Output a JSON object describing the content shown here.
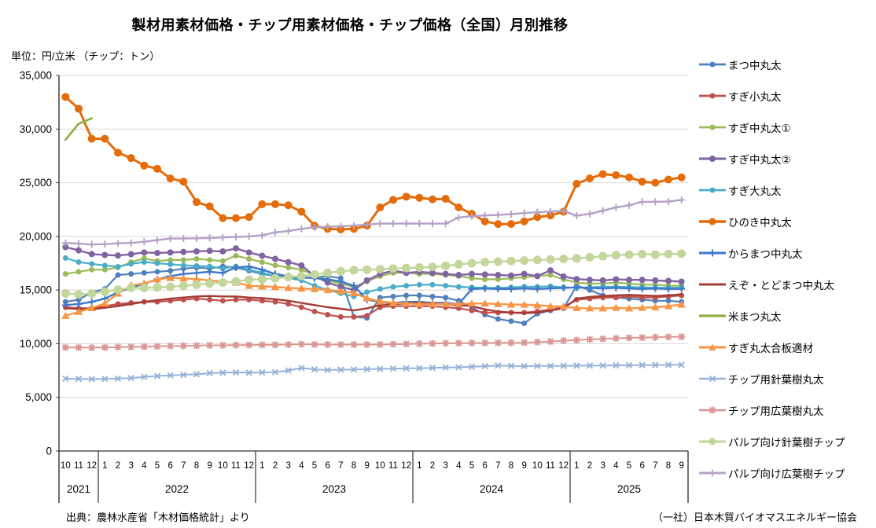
{
  "title": "製材用素材価格・チップ用素材価格・チップ価格（全国）月別推移",
  "unit_label": "単位：円/立米 （チップ：トン）",
  "source_left": "出典：農林水産省「木材価格統計」より",
  "source_right": "（一社）日本木質バイオマスエネルギー協会",
  "chart_data": {
    "type": "line",
    "ylabel": "円/立米（チップ：トン）",
    "ylim": [
      0,
      35000
    ],
    "ytick_step": 5000,
    "grid": true,
    "legend_position": "right",
    "x_years": [
      {
        "year": "2021",
        "months": [
          "10",
          "11",
          "12"
        ]
      },
      {
        "year": "2022",
        "months": [
          "1",
          "2",
          "3",
          "4",
          "5",
          "6",
          "7",
          "8",
          "9",
          "10",
          "11",
          "12"
        ]
      },
      {
        "year": "2023",
        "months": [
          "1",
          "2",
          "3",
          "4",
          "5",
          "6",
          "7",
          "8",
          "9",
          "10",
          "11",
          "12"
        ]
      },
      {
        "year": "2024",
        "months": [
          "1",
          "2",
          "3",
          "4",
          "5",
          "6",
          "7",
          "8",
          "9",
          "10",
          "11",
          "12"
        ]
      },
      {
        "year": "2025",
        "months": [
          "1",
          "2",
          "3",
          "4",
          "5",
          "6",
          "7",
          "8",
          "9"
        ]
      }
    ],
    "series": [
      {
        "name": "まつ中丸太",
        "color": "#4F81BD",
        "marker": "circle",
        "marker_size": 3.5,
        "line_width": 2.2,
        "values": [
          13900,
          14100,
          14800,
          15100,
          16400,
          16500,
          16600,
          16700,
          16800,
          17000,
          17100,
          17000,
          17200,
          17100,
          16800,
          16500,
          16300,
          16200,
          16100,
          16200,
          16300,
          16100,
          12500,
          12400,
          14300,
          14400,
          14500,
          14500,
          14400,
          14300,
          14000,
          13400,
          12700,
          12300,
          12100,
          11900,
          12800,
          13100,
          13300,
          15400,
          15000,
          14500,
          14300,
          14200,
          14100,
          14000,
          14000,
          13900
        ]
      },
      {
        "name": "すぎ小丸太",
        "color": "#C0504D",
        "marker": "circle",
        "marker_size": 3.5,
        "line_width": 2.2,
        "values": [
          13400,
          13300,
          13300,
          13500,
          13700,
          13800,
          13900,
          13900,
          14000,
          14100,
          14200,
          14100,
          14000,
          14100,
          14100,
          14000,
          13900,
          13700,
          13400,
          13000,
          12700,
          12500,
          12500,
          12600,
          13400,
          13500,
          13500,
          13500,
          13500,
          13400,
          13300,
          13100,
          12900,
          12900,
          12900,
          12900,
          13000,
          13200,
          13400,
          14100,
          14200,
          14300,
          14300,
          14400,
          14300,
          14300,
          14400,
          14500
        ]
      },
      {
        "name": "すぎ中丸太①",
        "color": "#9BBB59",
        "marker": "circle",
        "marker_size": 3.5,
        "line_width": 2.2,
        "values": [
          16500,
          16700,
          16900,
          16900,
          17100,
          17600,
          17950,
          17700,
          17800,
          17800,
          17900,
          17800,
          17700,
          18200,
          17900,
          17600,
          17300,
          17100,
          16900,
          16400,
          15900,
          15600,
          15300,
          15800,
          16300,
          16600,
          16600,
          16500,
          16500,
          16400,
          16300,
          16100,
          16000,
          16000,
          16100,
          16200,
          16300,
          16400,
          16000,
          15700,
          15600,
          15600,
          15700,
          15600,
          15500,
          15500,
          15400,
          15400
        ]
      },
      {
        "name": "すぎ中丸太②",
        "color": "#8064A2",
        "marker": "circle",
        "marker_size": 4,
        "line_width": 2.4,
        "values": [
          19000,
          18700,
          18350,
          18270,
          18220,
          18340,
          18500,
          18450,
          18500,
          18550,
          18600,
          18650,
          18600,
          18880,
          18500,
          18200,
          17900,
          17600,
          17300,
          16300,
          15700,
          15300,
          15000,
          15900,
          16500,
          16800,
          16600,
          16700,
          16600,
          16500,
          16400,
          16500,
          16450,
          16400,
          16350,
          16500,
          16300,
          16830,
          16260,
          16020,
          15950,
          15900,
          16000,
          15950,
          15950,
          15900,
          15850,
          15780
        ]
      },
      {
        "name": "すぎ大丸太",
        "color": "#4BACC6",
        "marker": "circle",
        "marker_size": 3.5,
        "line_width": 2.2,
        "values": [
          17980,
          17610,
          17440,
          17290,
          17170,
          17440,
          17610,
          17500,
          17400,
          17300,
          17250,
          17200,
          17000,
          17200,
          16900,
          16600,
          16300,
          16100,
          15900,
          15400,
          15000,
          14700,
          14400,
          14800,
          15100,
          15300,
          15400,
          15500,
          15500,
          15400,
          15300,
          15250,
          15200,
          15200,
          15250,
          15300,
          15300,
          15350,
          15250,
          15200,
          15250,
          15300,
          15300,
          15280,
          15250,
          15220,
          15200,
          15220
        ]
      },
      {
        "name": "ひのき中丸太",
        "color": "#E46C0A",
        "marker": "circle",
        "marker_size": 5,
        "line_width": 3,
        "values": [
          33000,
          31900,
          29100,
          29100,
          27800,
          27300,
          26600,
          26300,
          25400,
          25100,
          23200,
          22800,
          21700,
          21700,
          21800,
          23000,
          23000,
          22900,
          22300,
          21000,
          20700,
          20650,
          20700,
          21000,
          22700,
          23400,
          23700,
          23600,
          23450,
          23500,
          22700,
          22100,
          21400,
          21150,
          21150,
          21400,
          21800,
          21950,
          22300,
          24900,
          25400,
          25800,
          25700,
          25500,
          25100,
          25000,
          25300,
          25500
        ]
      },
      {
        "name": "からまつ中丸太",
        "color": "#3E78C8",
        "marker": "plus",
        "marker_size": 4.5,
        "line_width": 2.4,
        "values": [
          13600,
          13700,
          13900,
          14200,
          14800,
          15200,
          15600,
          16000,
          16300,
          16500,
          16600,
          16700,
          16600,
          17100,
          17200,
          16900,
          16500,
          16300,
          16200,
          16100,
          16000,
          15800,
          15400,
          14100,
          13900,
          13800,
          13900,
          13900,
          13800,
          13800,
          13700,
          15100,
          15150,
          15100,
          15100,
          15150,
          15100,
          15150,
          15200,
          15250,
          15200,
          15150,
          15200,
          15150,
          15100,
          15150,
          15100,
          15120
        ]
      },
      {
        "name": "えぞ・とどまつ中丸太",
        "color": "#A33C35",
        "marker": "none",
        "marker_size": 0,
        "line_width": 2.4,
        "values": [
          13300,
          13250,
          13200,
          13350,
          13500,
          13700,
          13900,
          14050,
          14200,
          14300,
          14400,
          14450,
          14400,
          14400,
          14300,
          14250,
          14150,
          14000,
          13800,
          13600,
          13400,
          13250,
          13100,
          13300,
          13600,
          13700,
          13750,
          13800,
          13750,
          13700,
          13600,
          13500,
          13200,
          13000,
          12900,
          12850,
          12900,
          13100,
          13300,
          14200,
          14350,
          14450,
          14500,
          14550,
          14500,
          14450,
          14500,
          14600
        ]
      },
      {
        "name": "米まつ丸太",
        "color": "#8FAF3E",
        "marker": "none",
        "marker_size": 0,
        "line_width": 2.6,
        "values": [
          29000,
          30500,
          31000,
          null,
          null,
          null,
          null,
          null,
          null,
          null,
          null,
          null,
          null,
          null,
          null,
          null,
          null,
          null,
          null,
          null,
          null,
          null,
          null,
          null,
          null,
          null,
          null,
          null,
          null,
          null,
          null,
          null,
          null,
          null,
          null,
          null,
          null,
          null,
          null,
          null,
          null,
          null,
          null,
          null,
          null,
          null,
          null,
          null
        ]
      },
      {
        "name": "すぎ丸太合板適材",
        "color": "#F79646",
        "marker": "triangle",
        "marker_size": 5,
        "line_width": 2.4,
        "values": [
          12600,
          12970,
          13330,
          13750,
          14680,
          15460,
          15600,
          16000,
          16140,
          16090,
          16020,
          15900,
          15780,
          15700,
          15400,
          15350,
          15290,
          15200,
          15150,
          15100,
          15000,
          14900,
          14720,
          14240,
          13940,
          13800,
          13750,
          13700,
          13700,
          13700,
          13700,
          13750,
          13750,
          13700,
          13650,
          13650,
          13580,
          13500,
          13450,
          13330,
          13300,
          13300,
          13350,
          13300,
          13350,
          13400,
          13500,
          13650
        ]
      },
      {
        "name": "チップ用針葉樹丸太",
        "color": "#95B3D7",
        "marker": "x",
        "marker_size": 4.5,
        "line_width": 2,
        "values": [
          6740,
          6720,
          6700,
          6720,
          6750,
          6800,
          6900,
          6990,
          7050,
          7100,
          7150,
          7250,
          7300,
          7320,
          7300,
          7320,
          7350,
          7500,
          7740,
          7600,
          7550,
          7570,
          7590,
          7620,
          7650,
          7680,
          7700,
          7720,
          7750,
          7780,
          7800,
          7850,
          7900,
          7960,
          7930,
          7910,
          7920,
          7930,
          7940,
          7950,
          7960,
          7970,
          7980,
          7990,
          8000,
          8010,
          8020,
          8030
        ]
      },
      {
        "name": "チップ用広葉樹丸太",
        "color": "#D99694",
        "marker": "asterisk",
        "marker_size": 4.5,
        "line_width": 2,
        "values": [
          9650,
          9640,
          9630,
          9650,
          9680,
          9700,
          9720,
          9750,
          9780,
          9800,
          9820,
          9850,
          9850,
          9870,
          9880,
          9890,
          9900,
          9920,
          9950,
          9930,
          9920,
          9920,
          9920,
          9920,
          9920,
          9950,
          9970,
          10000,
          10020,
          10040,
          10050,
          10060,
          10070,
          10080,
          10090,
          10100,
          10150,
          10200,
          10280,
          10330,
          10400,
          10450,
          10500,
          10550,
          10570,
          10600,
          10630,
          10650
        ]
      },
      {
        "name": "パルプ向け針葉樹チップ",
        "color": "#C3D69B",
        "marker": "circle",
        "marker_size": 5.5,
        "line_width": 2.4,
        "values": [
          14680,
          14600,
          14680,
          14850,
          15040,
          15210,
          15200,
          15250,
          15300,
          15400,
          15500,
          15600,
          15700,
          15800,
          15950,
          16000,
          16100,
          16200,
          16300,
          16450,
          16600,
          16750,
          16850,
          16900,
          16950,
          17000,
          17050,
          17100,
          17150,
          17250,
          17400,
          17500,
          17600,
          17650,
          17700,
          17750,
          17800,
          17850,
          17900,
          17950,
          18050,
          18150,
          18250,
          18300,
          18350,
          18300,
          18350,
          18390
        ]
      },
      {
        "name": "パルプ向け広葉樹チップ",
        "color": "#B3A2C7",
        "marker": "plus",
        "marker_size": 4.5,
        "line_width": 2.4,
        "values": [
          19390,
          19320,
          19240,
          19280,
          19350,
          19390,
          19500,
          19650,
          19800,
          19810,
          19820,
          19850,
          19900,
          19950,
          20000,
          20100,
          20370,
          20500,
          20700,
          20850,
          20900,
          20950,
          21000,
          21100,
          21190,
          21200,
          21200,
          21200,
          21190,
          21190,
          21760,
          21880,
          21950,
          22000,
          22080,
          22170,
          22250,
          22320,
          22370,
          21930,
          22100,
          22400,
          22700,
          22900,
          23220,
          23220,
          23250,
          23400
        ]
      }
    ]
  }
}
